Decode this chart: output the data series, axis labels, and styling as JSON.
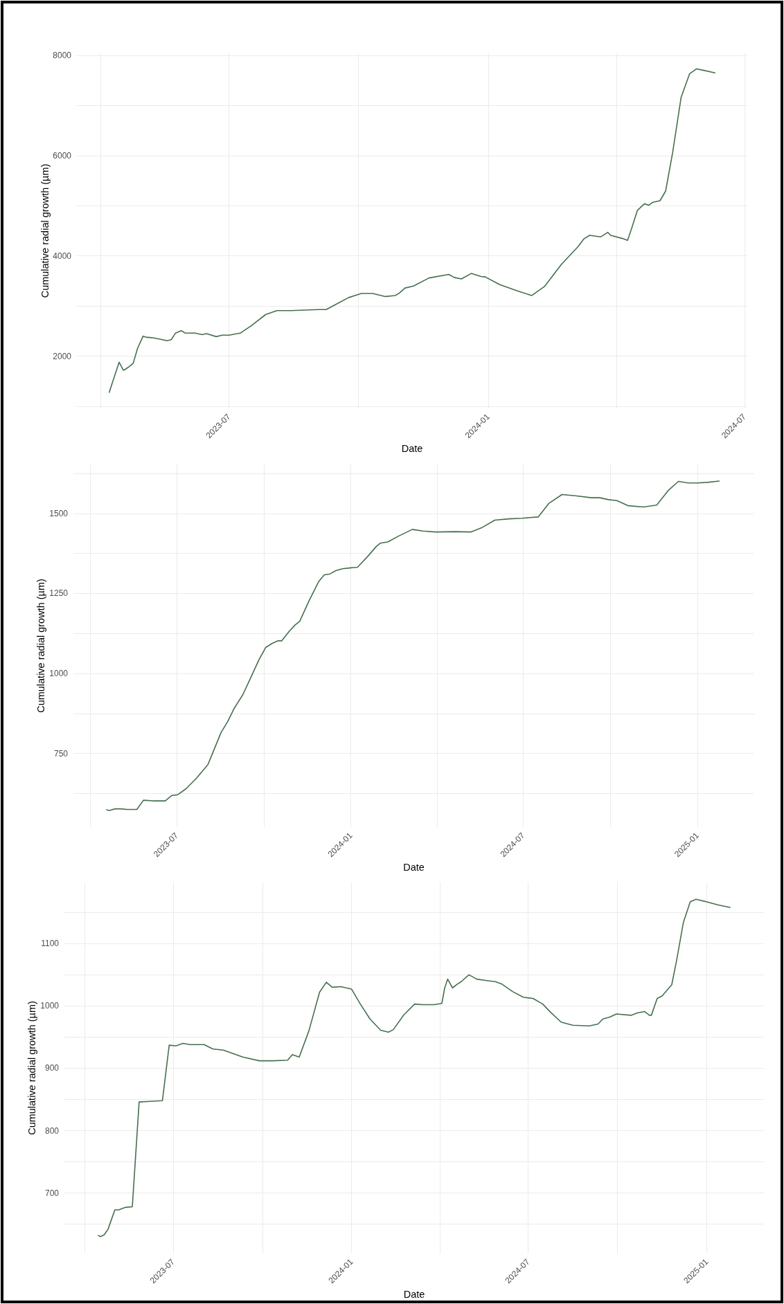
{
  "chart_data": [
    {
      "type": "line",
      "xlabel": "Date",
      "ylabel": "Cumulative radial growth (µm)",
      "color": "#456f4d",
      "marker": "none",
      "line_style": "solid",
      "grid": true,
      "xlim": [
        "2023-03-15",
        "2024-07-03"
      ],
      "ylim": [
        960,
        8040
      ],
      "xticks": [
        {
          "value": "2023-04",
          "label": null
        },
        "2023-07",
        {
          "value": "2023-10",
          "label": null
        },
        "2024-01",
        {
          "value": "2024-04",
          "label": null
        },
        "2024-07"
      ],
      "yticks": [
        {
          "value": 1000,
          "label": null
        },
        2000,
        {
          "value": 3000,
          "label": null
        },
        4000,
        {
          "value": 5000,
          "label": null
        },
        6000,
        {
          "value": 7000,
          "label": null
        },
        8000
      ],
      "x": [
        "2023-04-07",
        "2023-04-10",
        "2023-04-12",
        "2023-04-14",
        "2023-04-17",
        "2023-04-19",
        "2023-04-21",
        "2023-04-24",
        "2023-04-27",
        "2023-05-01",
        "2023-05-03",
        "2023-05-07",
        "2023-05-13",
        "2023-05-18",
        "2023-05-21",
        "2023-05-24",
        "2023-05-28",
        "2023-05-31",
        "2023-06-07",
        "2023-06-12",
        "2023-06-15",
        "2023-06-22",
        "2023-06-26",
        "2023-07-01",
        "2023-07-09",
        "2023-07-17",
        "2023-07-27",
        "2023-08-04",
        "2023-08-14",
        "2023-08-24",
        "2023-09-02",
        "2023-09-08",
        "2023-09-14",
        "2023-09-24",
        "2023-10-03",
        "2023-10-11",
        "2023-10-20",
        "2023-10-27",
        "2023-10-30",
        "2023-11-03",
        "2023-11-09",
        "2023-11-20",
        "2023-12-04",
        "2023-12-08",
        "2023-12-13",
        "2023-12-20",
        "2023-12-27",
        "2023-12-30",
        "2024-01-09",
        "2024-01-21",
        "2024-02-01",
        "2024-02-10",
        "2024-02-22",
        "2024-03-05",
        "2024-03-09",
        "2024-03-13",
        "2024-03-21",
        "2024-03-26",
        "2024-03-28",
        "2024-04-05",
        "2024-04-09",
        "2024-04-12",
        "2024-04-16",
        "2024-04-21",
        "2024-04-24",
        "2024-04-27",
        "2024-05-02",
        "2024-05-06",
        "2024-05-11",
        "2024-05-17",
        "2024-05-23",
        "2024-05-28",
        "2024-06-02",
        "2024-06-10"
      ],
      "values": [
        1280,
        1540,
        1710,
        1880,
        1720,
        1750,
        1790,
        1860,
        2150,
        2400,
        2380,
        2370,
        2340,
        2310,
        2330,
        2460,
        2510,
        2460,
        2460,
        2430,
        2450,
        2390,
        2420,
        2420,
        2460,
        2610,
        2830,
        2910,
        2910,
        2920,
        2930,
        2930,
        3020,
        3170,
        3250,
        3250,
        3190,
        3210,
        3260,
        3360,
        3400,
        3560,
        3630,
        3570,
        3540,
        3650,
        3590,
        3580,
        3430,
        3310,
        3210,
        3390,
        3830,
        4190,
        4340,
        4410,
        4380,
        4470,
        4410,
        4350,
        4310,
        4560,
        4910,
        5040,
        5010,
        5070,
        5100,
        5290,
        6060,
        7160,
        7630,
        7730,
        7700,
        7650
      ]
    },
    {
      "type": "line",
      "xlabel": "Date",
      "ylabel": "Cumulative radial growth (µm)",
      "color": "#456f4d",
      "marker": "none",
      "line_style": "solid",
      "grid": true,
      "xlim": [
        "2023-03-14",
        "2025-03-02"
      ],
      "ylim": [
        520,
        1653
      ],
      "xticks": [
        {
          "value": "2023-04",
          "label": null
        },
        "2023-07",
        {
          "value": "2023-10",
          "label": null
        },
        "2024-01",
        {
          "value": "2024-04",
          "label": null
        },
        "2024-07",
        {
          "value": "2024-10",
          "label": null
        },
        "2025-01"
      ],
      "yticks": [
        {
          "value": 625,
          "label": null
        },
        750,
        {
          "value": 875,
          "label": null
        },
        1000,
        {
          "value": 1125,
          "label": null
        },
        1250,
        {
          "value": 1375,
          "label": null
        },
        1500,
        {
          "value": 1625,
          "label": null
        }
      ],
      "x": [
        "2023-04-18",
        "2023-04-21",
        "2023-04-27",
        "2023-05-03",
        "2023-05-10",
        "2023-05-20",
        "2023-05-27",
        "2023-06-06",
        "2023-06-19",
        "2023-06-26",
        "2023-07-02",
        "2023-07-11",
        "2023-07-22",
        "2023-08-03",
        "2023-08-08",
        "2023-08-17",
        "2023-08-24",
        "2023-08-31",
        "2023-09-09",
        "2023-09-17",
        "2023-09-26",
        "2023-10-03",
        "2023-10-10",
        "2023-10-16",
        "2023-10-20",
        "2023-10-28",
        "2023-11-03",
        "2023-11-08",
        "2023-11-18",
        "2023-11-28",
        "2023-12-04",
        "2023-12-10",
        "2023-12-16",
        "2023-12-23",
        "2024-01-01",
        "2024-01-08",
        "2024-01-18",
        "2024-01-28",
        "2024-02-01",
        "2024-02-09",
        "2024-02-21",
        "2024-03-06",
        "2024-03-17",
        "2024-03-31",
        "2024-04-20",
        "2024-05-07",
        "2024-05-18",
        "2024-06-01",
        "2024-06-16",
        "2024-06-30",
        "2024-07-17",
        "2024-07-28",
        "2024-08-11",
        "2024-08-25",
        "2024-09-11",
        "2024-09-20",
        "2024-09-29",
        "2024-10-08",
        "2024-10-20",
        "2024-11-05",
        "2024-11-19",
        "2024-12-01",
        "2024-12-12",
        "2024-12-22",
        "2025-01-01",
        "2025-01-12",
        "2025-01-24"
      ],
      "values": [
        574,
        572,
        577,
        577,
        575,
        575,
        604,
        602,
        602,
        619,
        621,
        640,
        673,
        715,
        751,
        816,
        850,
        892,
        934,
        985,
        1043,
        1081,
        1094,
        1102,
        1102,
        1132,
        1151,
        1163,
        1228,
        1287,
        1308,
        1311,
        1321,
        1327,
        1330,
        1332,
        1363,
        1397,
        1407,
        1411,
        1430,
        1450,
        1445,
        1442,
        1443,
        1442,
        1455,
        1479,
        1483,
        1485,
        1489,
        1531,
        1559,
        1555,
        1549,
        1549,
        1543,
        1540,
        1524,
        1520,
        1526,
        1571,
        1600,
        1595,
        1595,
        1597,
        1601
      ]
    },
    {
      "type": "line",
      "xlabel": "Date",
      "ylabel": "Cumulative radial growth (µm)",
      "color": "#456f4d",
      "marker": "none",
      "line_style": "solid",
      "grid": true,
      "xlim": [
        "2023-03-11",
        "2025-03-01"
      ],
      "ylim": [
        603,
        1198
      ],
      "xticks": [
        {
          "value": "2023-04",
          "label": null
        },
        "2023-07",
        {
          "value": "2023-10",
          "label": null
        },
        "2024-01",
        {
          "value": "2024-04",
          "label": null
        },
        "2024-07",
        {
          "value": "2024-10",
          "label": null
        },
        "2025-01"
      ],
      "yticks": [
        {
          "value": 650,
          "label": null
        },
        700,
        {
          "value": 750,
          "label": null
        },
        800,
        {
          "value": 850,
          "label": null
        },
        900,
        {
          "value": 950,
          "label": null
        },
        1000,
        {
          "value": 1050,
          "label": null
        },
        1100,
        {
          "value": 1150,
          "label": null
        }
      ],
      "x": [
        "2023-04-15",
        "2023-04-17",
        "2023-04-21",
        "2023-04-25",
        "2023-05-02",
        "2023-05-06",
        "2023-05-13",
        "2023-05-20",
        "2023-05-27",
        "2023-06-07",
        "2023-06-20",
        "2023-06-27",
        "2023-07-04",
        "2023-07-11",
        "2023-07-19",
        "2023-08-02",
        "2023-08-11",
        "2023-08-22",
        "2023-08-31",
        "2023-09-11",
        "2023-09-28",
        "2023-10-12",
        "2023-10-27",
        "2023-11-01",
        "2023-11-08",
        "2023-11-18",
        "2023-11-29",
        "2023-12-06",
        "2023-12-12",
        "2023-12-21",
        "2024-01-01",
        "2024-01-10",
        "2024-01-20",
        "2024-01-31",
        "2024-02-08",
        "2024-02-13",
        "2024-02-24",
        "2024-03-06",
        "2024-03-14",
        "2024-03-26",
        "2024-04-03",
        "2024-04-06",
        "2024-04-09",
        "2024-04-14",
        "2024-04-19",
        "2024-04-23",
        "2024-05-01",
        "2024-05-09",
        "2024-05-18",
        "2024-05-28",
        "2024-06-04",
        "2024-06-15",
        "2024-06-26",
        "2024-07-06",
        "2024-07-16",
        "2024-07-24",
        "2024-08-04",
        "2024-08-16",
        "2024-09-02",
        "2024-09-11",
        "2024-09-16",
        "2024-09-23",
        "2024-09-30",
        "2024-10-15",
        "2024-10-22",
        "2024-10-29",
        "2024-11-03",
        "2024-11-05",
        "2024-11-11",
        "2024-11-16",
        "2024-11-26",
        "2024-12-01",
        "2024-12-08",
        "2024-12-15",
        "2024-12-21",
        "2025-01-01",
        "2025-01-13",
        "2025-01-25"
      ],
      "values": [
        632,
        630,
        633,
        642,
        673,
        673,
        677,
        678,
        846,
        847,
        848,
        937,
        936,
        940,
        938,
        938,
        931,
        929,
        924,
        918,
        912,
        912,
        913,
        922,
        918,
        960,
        1022,
        1038,
        1030,
        1031,
        1027,
        1003,
        979,
        961,
        958,
        962,
        986,
        1003,
        1002,
        1002,
        1004,
        1029,
        1043,
        1029,
        1035,
        1039,
        1050,
        1043,
        1041,
        1039,
        1035,
        1023,
        1014,
        1012,
        1003,
        990,
        974,
        969,
        968,
        971,
        979,
        982,
        987,
        985,
        989,
        991,
        985,
        985,
        1012,
        1016,
        1034,
        1073,
        1134,
        1167,
        1171,
        1167,
        1162,
        1158
      ]
    }
  ]
}
